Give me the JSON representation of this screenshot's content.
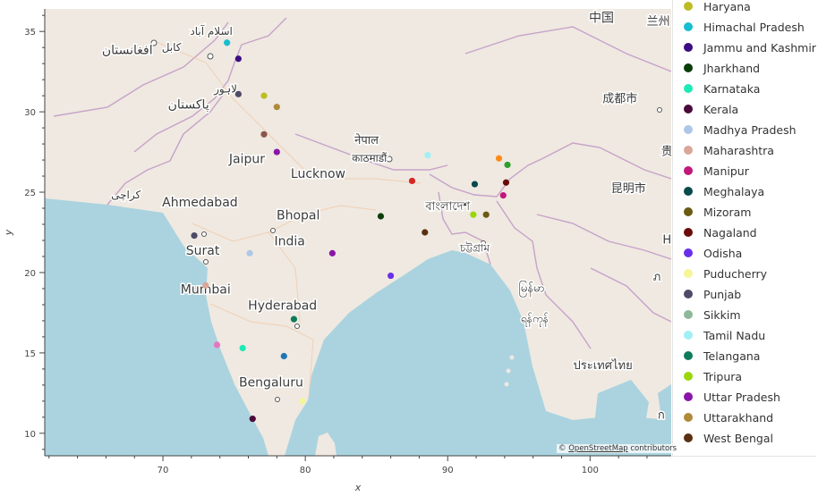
{
  "chart_data": {
    "type": "scatter",
    "xlabel": "x",
    "ylabel": "y",
    "xlim": [
      61.7,
      105.7
    ],
    "ylim": [
      8.6,
      36.4
    ],
    "x_ticks": [
      70,
      80,
      90,
      100
    ],
    "y_ticks": [
      10,
      15,
      20,
      25,
      30,
      35
    ],
    "grid": false,
    "legend_position": "right",
    "tiles_attribution": {
      "prefix": "© ",
      "link": "OpenStreetMap",
      "suffix": " contributors"
    },
    "map_labels": [
      {
        "text": "افغانستان",
        "lon": 67.5,
        "lat": 33.6,
        "size": 14
      },
      {
        "text": "کابل",
        "lon": 70.6,
        "lat": 33.8,
        "size": 12
      },
      {
        "text": "اسلام آباد",
        "lon": 73.4,
        "lat": 34.8,
        "size": 12
      },
      {
        "text": "لاہور",
        "lon": 74.4,
        "lat": 31.2,
        "size": 12
      },
      {
        "text": "پاکستان",
        "lon": 71.8,
        "lat": 30.2,
        "size": 14
      },
      {
        "text": "کراچی",
        "lon": 67.4,
        "lat": 24.6,
        "size": 12
      },
      {
        "text": "Jaipur",
        "lon": 75.9,
        "lat": 26.8,
        "size": 14
      },
      {
        "text": "Lucknow",
        "lon": 80.9,
        "lat": 25.9,
        "size": 14
      },
      {
        "text": "नेपाल",
        "lon": 84.3,
        "lat": 28.0,
        "size": 13
      },
      {
        "text": "काठमाडौं",
        "lon": 84.5,
        "lat": 26.9,
        "size": 12
      },
      {
        "text": "Ahmedabad",
        "lon": 72.6,
        "lat": 24.1,
        "size": 14
      },
      {
        "text": "Bhopal",
        "lon": 79.5,
        "lat": 23.3,
        "size": 14
      },
      {
        "text": "India",
        "lon": 78.9,
        "lat": 21.7,
        "size": 14
      },
      {
        "text": "Surat",
        "lon": 72.8,
        "lat": 21.1,
        "size": 14
      },
      {
        "text": "Mumbai",
        "lon": 73.0,
        "lat": 18.7,
        "size": 14
      },
      {
        "text": "Hyderabad",
        "lon": 78.4,
        "lat": 17.7,
        "size": 14
      },
      {
        "text": "Bengaluru",
        "lon": 77.6,
        "lat": 12.9,
        "size": 14
      },
      {
        "text": "বাংলাদেশ",
        "lon": 90.0,
        "lat": 23.9,
        "size": 13
      },
      {
        "text": "চট্টগ্রাম",
        "lon": 91.9,
        "lat": 21.3,
        "size": 12
      },
      {
        "text": "မြန်မာ",
        "lon": 95.9,
        "lat": 18.8,
        "size": 13
      },
      {
        "text": "ရန်ကုန်",
        "lon": 96.1,
        "lat": 16.9,
        "size": 12
      },
      {
        "text": "ประเทศไทย",
        "lon": 100.9,
        "lat": 14.0,
        "size": 13
      },
      {
        "text": "中国",
        "lon": 100.8,
        "lat": 35.6,
        "size": 14
      },
      {
        "text": "成都市",
        "lon": 102.1,
        "lat": 30.6,
        "size": 13
      },
      {
        "text": "昆明市",
        "lon": 102.7,
        "lat": 25.0,
        "size": 13
      },
      {
        "text": "兰州",
        "lon": 104.8,
        "lat": 35.4,
        "size": 13
      },
      {
        "text": "贵",
        "lon": 105.4,
        "lat": 27.3,
        "size": 13
      },
      {
        "text": "H",
        "lon": 105.4,
        "lat": 21.8,
        "size": 13
      },
      {
        "text": "ภ",
        "lon": 104.7,
        "lat": 19.5,
        "size": 13
      },
      {
        "text": "ก",
        "lon": 105.0,
        "lat": 10.9,
        "size": 13
      }
    ],
    "legend": [
      {
        "name": "Haryana",
        "color": "#bcbd22"
      },
      {
        "name": "Himachal Pradesh",
        "color": "#17becf"
      },
      {
        "name": "Jammu and Kashmir",
        "color": "#3c0c82"
      },
      {
        "name": "Jharkhand",
        "color": "#0a3d0a"
      },
      {
        "name": "Karnataka",
        "color": "#1de9b6"
      },
      {
        "name": "Kerala",
        "color": "#4a0a3a"
      },
      {
        "name": "Madhya Pradesh",
        "color": "#aec7e8"
      },
      {
        "name": "Maharashtra",
        "color": "#d9a699"
      },
      {
        "name": "Manipur",
        "color": "#c2187a"
      },
      {
        "name": "Meghalaya",
        "color": "#0a4a4a"
      },
      {
        "name": "Mizoram",
        "color": "#6b5a14"
      },
      {
        "name": "Nagaland",
        "color": "#6b0a0a"
      },
      {
        "name": "Odisha",
        "color": "#6a2fe8"
      },
      {
        "name": "Puducherry",
        "color": "#f5f59a"
      },
      {
        "name": "Punjab",
        "color": "#4f4a66"
      },
      {
        "name": "Sikkim",
        "color": "#8fb89a"
      },
      {
        "name": "Tamil Nadu",
        "color": "#a0f0f5"
      },
      {
        "name": "Telangana",
        "color": "#0f7a5a"
      },
      {
        "name": "Tripura",
        "color": "#9ad60a"
      },
      {
        "name": "Uttar Pradesh",
        "color": "#8a15a8"
      },
      {
        "name": "Uttarakhand",
        "color": "#b08a3a"
      },
      {
        "name": "West Bengal",
        "color": "#5a3010"
      }
    ],
    "points": [
      {
        "state": "Himachal Pradesh",
        "x": 74.5,
        "y": 34.3,
        "color": "#17becf"
      },
      {
        "state": "Jammu and Kashmir",
        "x": 75.3,
        "y": 33.3,
        "color": "#3c0c82"
      },
      {
        "state": "Punjab",
        "x": 75.3,
        "y": 31.1,
        "color": "#4f4a66"
      },
      {
        "state": "Haryana",
        "x": 77.1,
        "y": 31.0,
        "color": "#bcbd22"
      },
      {
        "state": "Uttarakhand",
        "x": 78.0,
        "y": 30.3,
        "color": "#b08a3a"
      },
      {
        "state": "Maharashtra",
        "x": 77.1,
        "y": 28.6,
        "color": "#8c564b"
      },
      {
        "state": "Uttar Pradesh",
        "x": 78.0,
        "y": 27.5,
        "color": "#8a15a8"
      },
      {
        "state": "Tamil Nadu",
        "x": 88.6,
        "y": 27.3,
        "color": "#a0f0f5"
      },
      {
        "state": "Mizoram",
        "x": 93.6,
        "y": 27.1,
        "color": "#ff8c1a"
      },
      {
        "state": "Tripura",
        "x": 94.2,
        "y": 26.7,
        "color": "#2ca02c"
      },
      {
        "state": "Nagaland",
        "x": 87.5,
        "y": 25.7,
        "color": "#d62728"
      },
      {
        "state": "Meghalaya",
        "x": 91.9,
        "y": 25.5,
        "color": "#0a4a4a"
      },
      {
        "state": "Nagaland",
        "x": 94.1,
        "y": 25.6,
        "color": "#6b0a0a"
      },
      {
        "state": "Manipur",
        "x": 93.9,
        "y": 24.8,
        "color": "#c2187a"
      },
      {
        "state": "Jharkhand",
        "x": 85.3,
        "y": 23.5,
        "color": "#0a3d0a"
      },
      {
        "state": "Tripura",
        "x": 91.8,
        "y": 23.6,
        "color": "#9ad60a"
      },
      {
        "state": "Mizoram",
        "x": 92.7,
        "y": 23.6,
        "color": "#6b5a14"
      },
      {
        "state": "West Bengal",
        "x": 88.4,
        "y": 22.5,
        "color": "#5a3010"
      },
      {
        "state": "Punjab",
        "x": 72.2,
        "y": 22.3,
        "color": "#4f4a66"
      },
      {
        "state": "Madhya Pradesh",
        "x": 76.1,
        "y": 21.2,
        "color": "#aec7e8"
      },
      {
        "state": "Uttar Pradesh",
        "x": 81.9,
        "y": 21.2,
        "color": "#8a15a8"
      },
      {
        "state": "Odisha",
        "x": 86.0,
        "y": 19.8,
        "color": "#6a2fe8"
      },
      {
        "state": "Maharashtra",
        "x": 73.0,
        "y": 19.2,
        "color": "#d9a699"
      },
      {
        "state": "Telangana",
        "x": 79.2,
        "y": 17.1,
        "color": "#0f7a5a"
      },
      {
        "state": "Maharashtra",
        "x": 73.8,
        "y": 15.5,
        "color": "#e377c2"
      },
      {
        "state": "Karnataka",
        "x": 75.6,
        "y": 15.3,
        "color": "#1de9b6"
      },
      {
        "state": "Karnataka",
        "x": 78.5,
        "y": 14.8,
        "color": "#1f77b4"
      },
      {
        "state": "Puducherry",
        "x": 79.8,
        "y": 12.0,
        "color": "#f5f59a"
      },
      {
        "state": "Kerala",
        "x": 76.3,
        "y": 10.9,
        "color": "#4a0a3a"
      }
    ]
  }
}
